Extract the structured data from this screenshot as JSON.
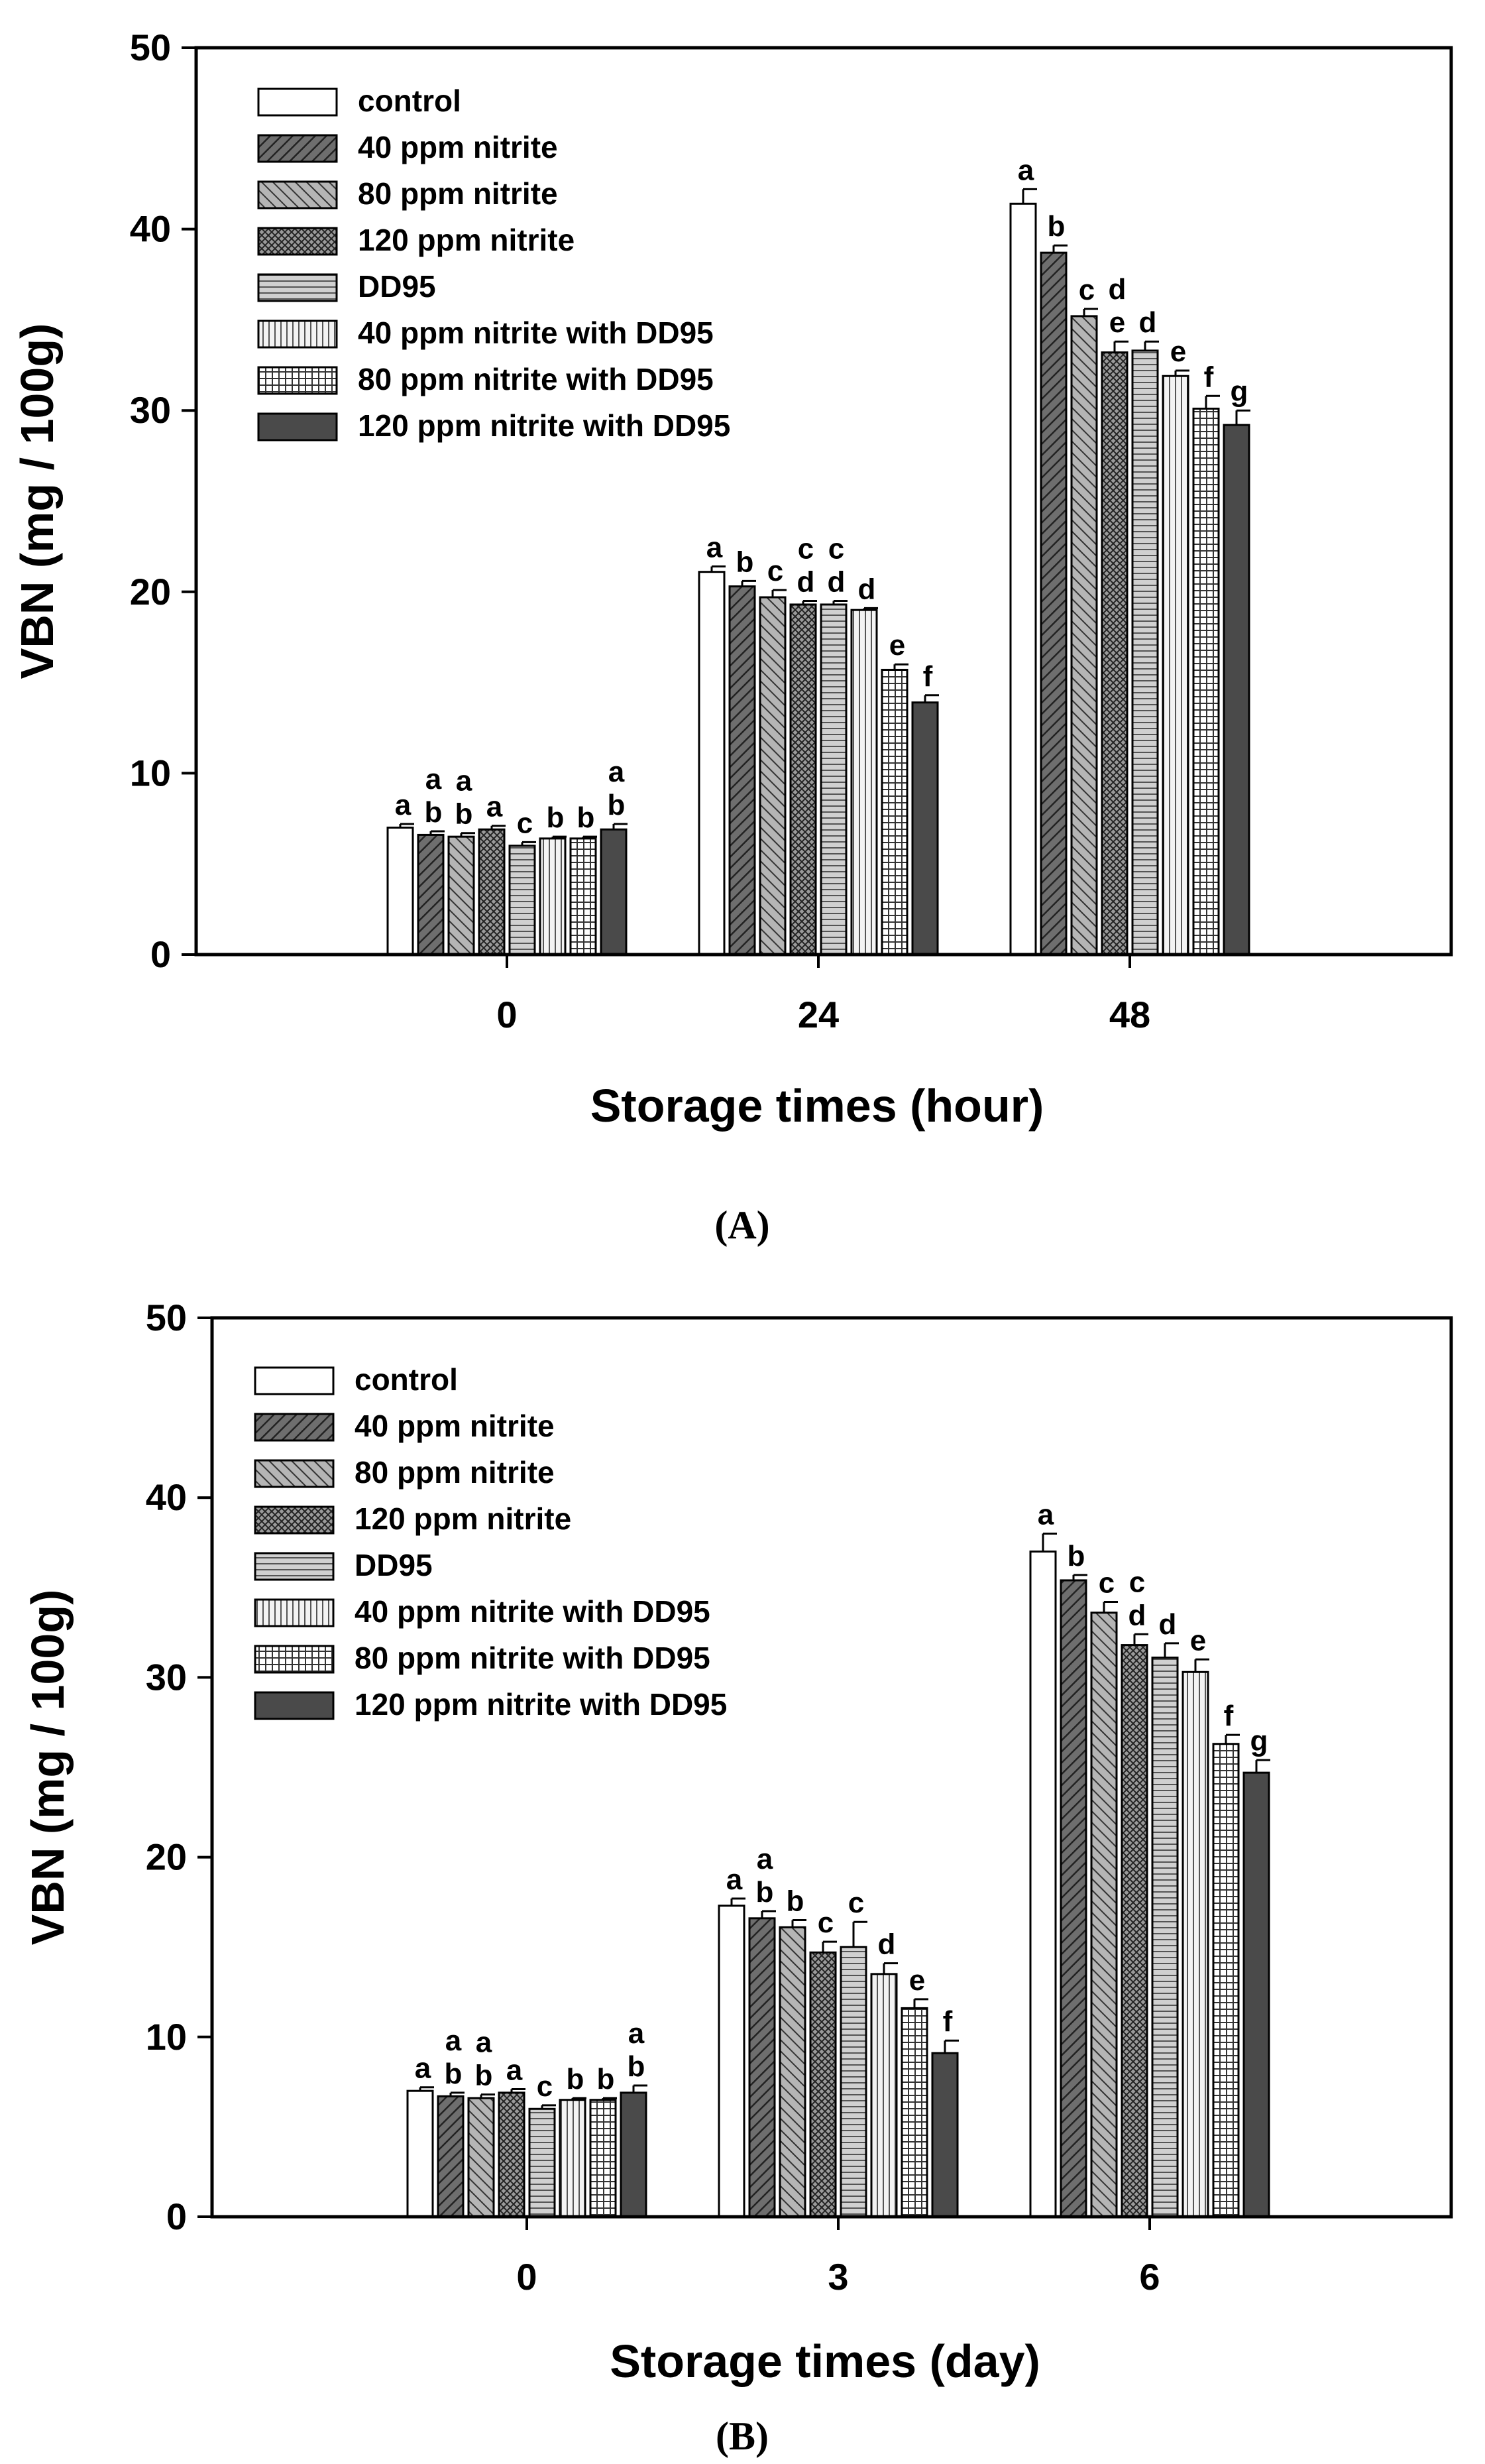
{
  "chart_data": [
    {
      "type": "bar",
      "panel_label": "(A)",
      "categories": [
        "0",
        "24",
        "48"
      ],
      "xlabel": "Storage times (hour)",
      "ylabel": "VBN (mg / 100g)",
      "ylim": [
        0,
        50
      ],
      "yticks": [
        "0",
        "10",
        "20",
        "30",
        "40",
        "50"
      ],
      "series": [
        {
          "name": "control",
          "pattern": "white",
          "values": [
            7.0,
            21.1,
            41.4
          ],
          "errors": [
            0.2,
            0.3,
            0.8
          ],
          "labels": [
            "a",
            "a",
            "a"
          ]
        },
        {
          "name": "40 ppm nitrite",
          "pattern": "diag-dark",
          "values": [
            6.6,
            20.3,
            38.7
          ],
          "errors": [
            0.2,
            0.3,
            0.4
          ],
          "labels": [
            "a b",
            "b",
            "b"
          ]
        },
        {
          "name": "80 ppm nitrite",
          "pattern": "diag-mid",
          "values": [
            6.5,
            19.7,
            35.2
          ],
          "errors": [
            0.2,
            0.4,
            0.4
          ],
          "labels": [
            "a b",
            "c",
            "c"
          ]
        },
        {
          "name": "120 ppm nitrite",
          "pattern": "cross",
          "values": [
            6.9,
            19.3,
            33.2
          ],
          "errors": [
            0.2,
            0.2,
            0.6
          ],
          "labels": [
            "a",
            "c d",
            "d e"
          ]
        },
        {
          "name": "DD95",
          "pattern": "hlines",
          "values": [
            6.0,
            19.3,
            33.3
          ],
          "errors": [
            0.2,
            0.2,
            0.5
          ],
          "labels": [
            "c",
            "c d",
            "d"
          ]
        },
        {
          "name": "40 ppm nitrite with DD95",
          "pattern": "vlines",
          "values": [
            6.4,
            19.0,
            31.9
          ],
          "errors": [
            0.1,
            0.1,
            0.3
          ],
          "labels": [
            "b",
            "d",
            "e"
          ]
        },
        {
          "name": "80 ppm nitrite with DD95",
          "pattern": "grid",
          "values": [
            6.4,
            15.7,
            30.1
          ],
          "errors": [
            0.1,
            0.3,
            0.7
          ],
          "labels": [
            "b",
            "e",
            "f"
          ]
        },
        {
          "name": "120 ppm nitrite with DD95",
          "pattern": "dark",
          "values": [
            6.9,
            13.9,
            29.2
          ],
          "errors": [
            0.3,
            0.4,
            0.8
          ],
          "labels": [
            "a b",
            "f",
            "g"
          ]
        }
      ]
    },
    {
      "type": "bar",
      "panel_label": "(B)",
      "categories": [
        "0",
        "3",
        "6"
      ],
      "xlabel": "Storage times (day)",
      "ylabel": "VBN (mg / 100g)",
      "ylim": [
        0,
        50
      ],
      "yticks": [
        "0",
        "10",
        "20",
        "30",
        "40",
        "50"
      ],
      "series": [
        {
          "name": "control",
          "pattern": "white",
          "values": [
            7.0,
            17.3,
            37.0
          ],
          "errors": [
            0.2,
            0.4,
            1.0
          ],
          "labels": [
            "a",
            "a",
            "a"
          ]
        },
        {
          "name": "40 ppm nitrite",
          "pattern": "diag-dark",
          "values": [
            6.7,
            16.6,
            35.4
          ],
          "errors": [
            0.2,
            0.4,
            0.3
          ],
          "labels": [
            "a b",
            "a b",
            "b"
          ]
        },
        {
          "name": "80 ppm nitrite",
          "pattern": "diag-mid",
          "values": [
            6.6,
            16.1,
            33.6
          ],
          "errors": [
            0.2,
            0.4,
            0.6
          ],
          "labels": [
            "a b",
            "b",
            "c"
          ]
        },
        {
          "name": "120 ppm nitrite",
          "pattern": "cross",
          "values": [
            6.9,
            14.7,
            31.8
          ],
          "errors": [
            0.2,
            0.6,
            0.6
          ],
          "labels": [
            "a",
            "c",
            "c d"
          ]
        },
        {
          "name": "DD95",
          "pattern": "hlines",
          "values": [
            6.0,
            15.0,
            31.1
          ],
          "errors": [
            0.2,
            1.4,
            0.8
          ],
          "labels": [
            "c",
            "c",
            "d"
          ]
        },
        {
          "name": "40 ppm nitrite with DD95",
          "pattern": "vlines",
          "values": [
            6.5,
            13.5,
            30.3
          ],
          "errors": [
            0.1,
            0.6,
            0.7
          ],
          "labels": [
            "b",
            "d",
            "e"
          ]
        },
        {
          "name": "80 ppm nitrite with DD95",
          "pattern": "grid",
          "values": [
            6.5,
            11.6,
            26.3
          ],
          "errors": [
            0.1,
            0.5,
            0.5
          ],
          "labels": [
            "b",
            "e",
            "f"
          ]
        },
        {
          "name": "120 ppm nitrite with DD95",
          "pattern": "dark",
          "values": [
            6.9,
            9.1,
            24.7
          ],
          "errors": [
            0.4,
            0.7,
            0.7
          ],
          "labels": [
            "a b",
            "f",
            "g"
          ]
        }
      ]
    }
  ]
}
